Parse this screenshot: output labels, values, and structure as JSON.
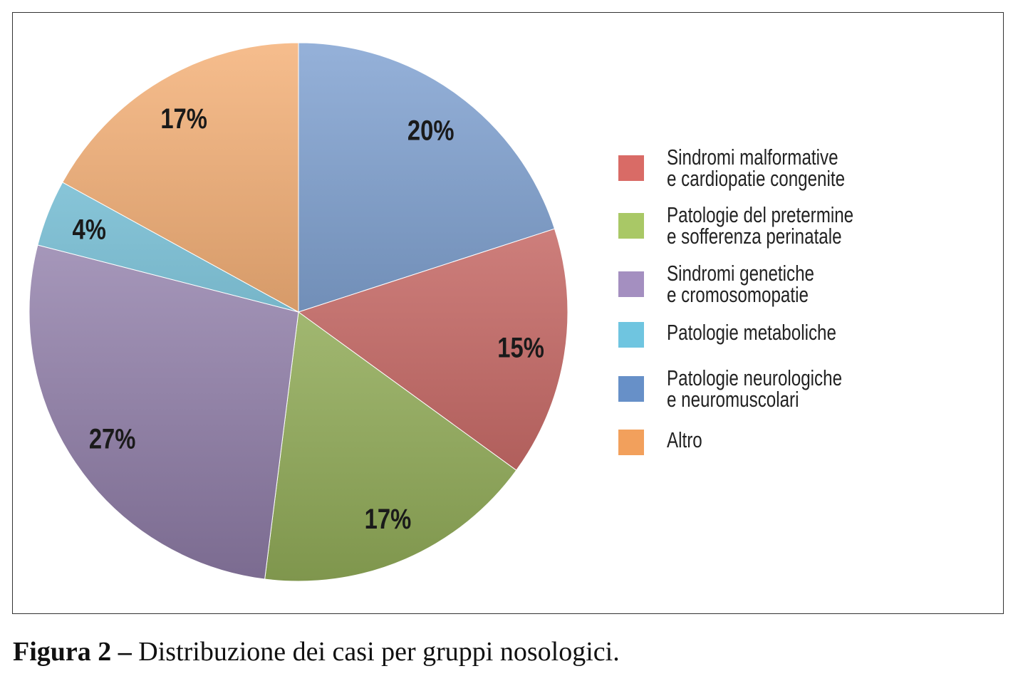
{
  "chart_data": {
    "type": "pie",
    "start": "12 o'clock, clockwise",
    "slices": [
      {
        "name": "Patologie neurologiche e neuromuscolari",
        "value": 20,
        "label": "20%",
        "color": "#6790c8"
      },
      {
        "name": "Sindromi malformative e cardiopatie congenite",
        "value": 15,
        "label": "15%",
        "color": "#d96b66"
      },
      {
        "name": "Patologie del pretermine e sofferenza perinatale",
        "value": 17,
        "label": "17%",
        "color": "#a9c866"
      },
      {
        "name": "Sindromi genetiche e cromosomopatie",
        "value": 27,
        "label": "27%",
        "color": "#a48fc0"
      },
      {
        "name": "Patologie metaboliche",
        "value": 4,
        "label": "4%",
        "color": "#6fc5e0"
      },
      {
        "name": "Altro",
        "value": 17,
        "label": "17%",
        "color": "#f2a05c"
      }
    ],
    "legend_placement": "right"
  },
  "legend": [
    {
      "lines": [
        "Sindromi malformative",
        "e cardiopatie congenite"
      ],
      "color": "#d96b66"
    },
    {
      "lines": [
        "Patologie del pretermine",
        "e sofferenza perinatale"
      ],
      "color": "#a9c866"
    },
    {
      "lines": [
        "Sindromi genetiche",
        "e cromosomopatie"
      ],
      "color": "#a48fc0"
    },
    {
      "lines": [
        "Patologie metaboliche"
      ],
      "color": "#6fc5e0"
    },
    {
      "lines": [
        "Patologie neurologiche",
        "e neuromuscolari"
      ],
      "color": "#6790c8"
    },
    {
      "lines": [
        "Altro"
      ],
      "color": "#f2a05c"
    }
  ],
  "caption": {
    "label": "Figura 2 –",
    "text": "Distribuzione dei casi per gruppi nosologici."
  }
}
